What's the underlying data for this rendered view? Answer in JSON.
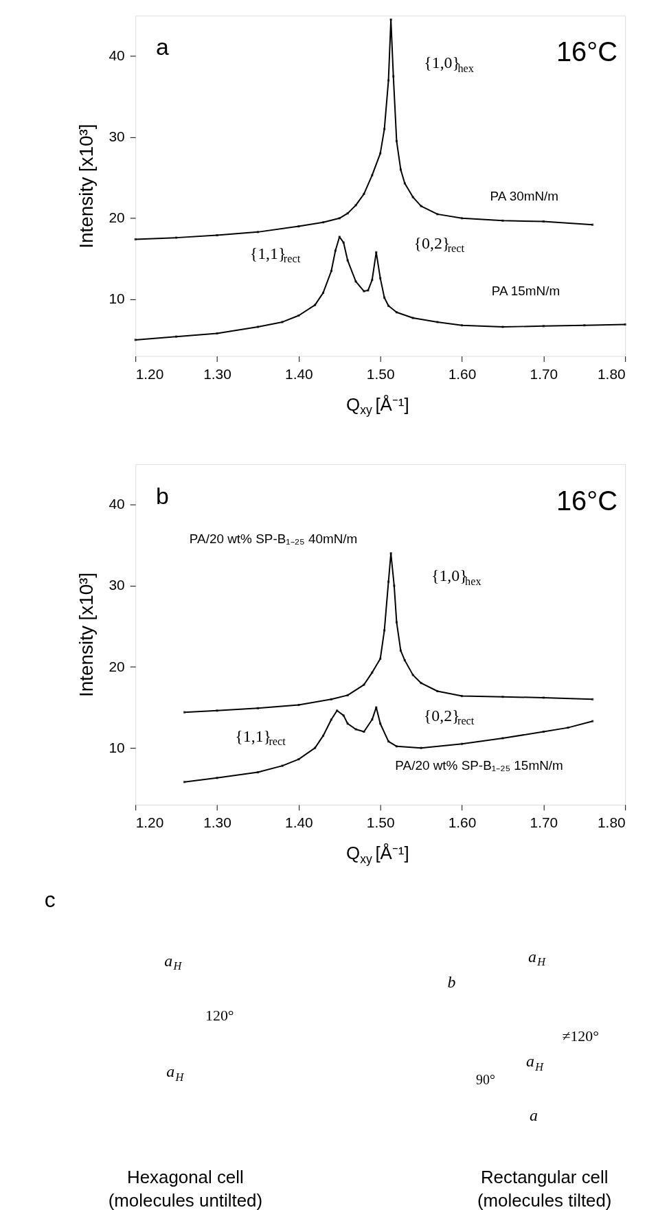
{
  "chart_data": [
    {
      "type": "line",
      "title": "a",
      "xlabel": "Q$_{xy}$ [Å⁻¹]",
      "ylabel": "Intensity [x10³]",
      "xlim": [
        1.2,
        1.8
      ],
      "ylim": [
        3,
        45
      ],
      "xticks": [
        {
          "value": 1.2,
          "label": "1.20"
        },
        {
          "value": 1.3,
          "label": "1.30"
        },
        {
          "value": 1.4,
          "label": "1.40"
        },
        {
          "value": 1.5,
          "label": "1.50"
        },
        {
          "value": 1.6,
          "label": "1.60"
        },
        {
          "value": 1.7,
          "label": "1.70"
        },
        {
          "value": 1.8,
          "label": "1.80"
        }
      ],
      "yticks": [
        10,
        20,
        30,
        40
      ],
      "grid": false,
      "legend": false,
      "marker": "square",
      "line_style": "solid",
      "series": [
        {
          "name": "PA 30mN/m",
          "color": "#000000",
          "x": [
            1.2,
            1.25,
            1.3,
            1.35,
            1.4,
            1.43,
            1.45,
            1.46,
            1.47,
            1.48,
            1.49,
            1.5,
            1.505,
            1.51,
            1.513,
            1.516,
            1.52,
            1.525,
            1.53,
            1.54,
            1.55,
            1.57,
            1.6,
            1.65,
            1.7,
            1.76
          ],
          "values": [
            17.4,
            17.6,
            17.9,
            18.3,
            19.0,
            19.5,
            20.0,
            20.6,
            21.6,
            23.0,
            25.3,
            28.0,
            31.0,
            37.0,
            44.5,
            37.5,
            29.5,
            26.0,
            24.3,
            22.6,
            21.5,
            20.5,
            20.0,
            19.7,
            19.6,
            19.2
          ]
        },
        {
          "name": "PA 15mN/m",
          "color": "#000000",
          "x": [
            1.2,
            1.25,
            1.3,
            1.35,
            1.38,
            1.4,
            1.42,
            1.43,
            1.44,
            1.445,
            1.45,
            1.455,
            1.46,
            1.47,
            1.48,
            1.485,
            1.49,
            1.495,
            1.5,
            1.505,
            1.51,
            1.52,
            1.54,
            1.57,
            1.6,
            1.65,
            1.7,
            1.75,
            1.8
          ],
          "values": [
            5.0,
            5.4,
            5.8,
            6.6,
            7.2,
            8.0,
            9.3,
            10.8,
            13.5,
            16.0,
            17.7,
            17.0,
            14.8,
            12.2,
            11.0,
            11.1,
            12.4,
            15.8,
            12.6,
            10.2,
            9.2,
            8.4,
            7.7,
            7.2,
            6.8,
            6.6,
            6.7,
            6.8,
            6.9
          ]
        }
      ],
      "annotations": [
        "16°C",
        "{1,0}$_{hex}$",
        "{1,1}$_{rect}$",
        "{0,2}$_{rect}$"
      ]
    },
    {
      "type": "line",
      "title": "b",
      "xlabel": "Q$_{xy}$ [Å⁻¹]",
      "ylabel": "Intensity [x10³]",
      "xlim": [
        1.2,
        1.8
      ],
      "ylim": [
        3,
        45
      ],
      "xticks": [
        {
          "value": 1.2,
          "label": "1.20"
        },
        {
          "value": 1.3,
          "label": "1.30"
        },
        {
          "value": 1.4,
          "label": "1.40"
        },
        {
          "value": 1.5,
          "label": "1.50"
        },
        {
          "value": 1.6,
          "label": "1.60"
        },
        {
          "value": 1.7,
          "label": "1.70"
        },
        {
          "value": 1.8,
          "label": "1.80"
        }
      ],
      "yticks": [
        10,
        20,
        30,
        40
      ],
      "grid": false,
      "legend": false,
      "marker": "square",
      "line_style": "solid",
      "series": [
        {
          "name": "PA/20 wt% SP-B₁₋₂₅ 40mN/m",
          "color": "#000000",
          "x": [
            1.26,
            1.3,
            1.35,
            1.4,
            1.44,
            1.46,
            1.48,
            1.49,
            1.5,
            1.505,
            1.51,
            1.513,
            1.517,
            1.52,
            1.525,
            1.53,
            1.54,
            1.55,
            1.57,
            1.6,
            1.65,
            1.7,
            1.76
          ],
          "values": [
            14.4,
            14.6,
            14.9,
            15.3,
            16.0,
            16.5,
            17.8,
            19.3,
            21.0,
            24.5,
            30.5,
            34.0,
            30.0,
            25.5,
            22.0,
            20.8,
            19.0,
            18.0,
            17.0,
            16.4,
            16.3,
            16.2,
            16.0
          ]
        },
        {
          "name": "PA/20 wt% SP-B₁₋₂₅ 15mN/m",
          "color": "#000000",
          "x": [
            1.26,
            1.3,
            1.35,
            1.38,
            1.4,
            1.42,
            1.43,
            1.44,
            1.447,
            1.455,
            1.46,
            1.47,
            1.48,
            1.49,
            1.495,
            1.5,
            1.51,
            1.52,
            1.55,
            1.6,
            1.65,
            1.7,
            1.73,
            1.76
          ],
          "values": [
            5.8,
            6.3,
            7.0,
            7.8,
            8.6,
            10.0,
            11.5,
            13.5,
            14.6,
            14.0,
            13.0,
            12.3,
            12.0,
            13.5,
            15.0,
            13.0,
            10.8,
            10.2,
            10.0,
            10.5,
            11.2,
            12.0,
            12.5,
            13.3
          ]
        }
      ],
      "annotations": [
        "16°C",
        "{1,0}$_{hex}$",
        "{1,1}$_{rect}$",
        "{0,2}$_{rect}$"
      ]
    },
    {
      "type": "other",
      "title": "c",
      "annotations": [
        "Hexagonal cell\n(molecules untilted)",
        "Rectangular  cell\n(molecules tilted)",
        "a$_{H}$",
        "a$_{H}$",
        "120°",
        "b",
        "a$_{H}$",
        "≠120°",
        "a$_{H}$",
        "90°",
        "a"
      ]
    }
  ]
}
